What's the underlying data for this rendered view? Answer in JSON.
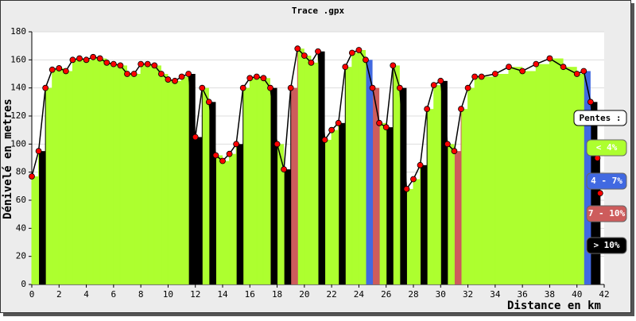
{
  "chart_data": {
    "type": "profile",
    "title": "Trace .gpx",
    "x_label": "Distance en km",
    "y_label": "Dénivelé en metres",
    "x": [
      0,
      0.5,
      1,
      1.5,
      2,
      2.5,
      3,
      3.5,
      4,
      4.5,
      5,
      5.5,
      6,
      6.5,
      7,
      7.5,
      8,
      8.5,
      9,
      9.5,
      10,
      10.5,
      11,
      11.5,
      12,
      12.5,
      13,
      13.5,
      14,
      14.5,
      15,
      15.5,
      16,
      16.5,
      17,
      17.5,
      18,
      18.5,
      19,
      19.5,
      20,
      20.5,
      21,
      21.5,
      22,
      22.5,
      23,
      23.5,
      24,
      24.5,
      25,
      25.5,
      26,
      26.5,
      27,
      27.5,
      28,
      28.5,
      29,
      29.5,
      30,
      30.5,
      31,
      31.5,
      32,
      32.5,
      33,
      34,
      35,
      36,
      37,
      38,
      39,
      40,
      40.5,
      41,
      41.5,
      41.7
    ],
    "values": [
      77,
      95,
      140,
      153,
      154,
      152,
      160,
      161,
      160,
      162,
      161,
      158,
      157,
      156,
      150,
      150,
      157,
      157,
      156,
      150,
      146,
      145,
      148,
      150,
      105,
      140,
      130,
      92,
      88,
      93,
      100,
      140,
      147,
      148,
      147,
      140,
      100,
      82,
      140,
      168,
      163,
      158,
      166,
      103,
      110,
      115,
      155,
      165,
      167,
      160,
      140,
      115,
      112,
      156,
      140,
      68,
      75,
      85,
      125,
      142,
      145,
      100,
      95,
      125,
      140,
      148,
      148,
      150,
      155,
      152,
      157,
      161,
      155,
      150,
      152,
      130,
      90,
      65
    ],
    "bar_colors": [
      "#adff2f",
      "#000000",
      "#adff2f",
      "#adff2f",
      "#adff2f",
      "#adff2f",
      "#adff2f",
      "#adff2f",
      "#adff2f",
      "#adff2f",
      "#adff2f",
      "#adff2f",
      "#adff2f",
      "#adff2f",
      "#adff2f",
      "#adff2f",
      "#adff2f",
      "#adff2f",
      "#adff2f",
      "#adff2f",
      "#adff2f",
      "#adff2f",
      "#adff2f",
      "#000000",
      "#000000",
      "#adff2f",
      "#000000",
      "#adff2f",
      "#adff2f",
      "#adff2f",
      "#000000",
      "#adff2f",
      "#adff2f",
      "#adff2f",
      "#adff2f",
      "#000000",
      "#adff2f",
      "#000000",
      "#cd5c5c",
      "#adff2f",
      "#adff2f",
      "#adff2f",
      "#000000",
      "#adff2f",
      "#adff2f",
      "#000000",
      "#adff2f",
      "#adff2f",
      "#adff2f",
      "#4169e1",
      "#cd5c5c",
      "#adff2f",
      "#000000",
      "#adff2f",
      "#000000",
      "#adff2f",
      "#adff2f",
      "#000000",
      "#adff2f",
      "#adff2f",
      "#000000",
      "#adff2f",
      "#cd5c5c",
      "#adff2f",
      "#adff2f",
      "#adff2f",
      "#adff2f",
      "#adff2f",
      "#adff2f",
      "#adff2f",
      "#adff2f",
      "#adff2f",
      "#adff2f",
      "#adff2f",
      "#4169e1",
      "#000000",
      "#000000",
      "#adff2f"
    ],
    "point_color": "#ff0000",
    "xlim": [
      0,
      42
    ],
    "xticks": [
      0,
      2,
      4,
      6,
      8,
      10,
      12,
      14,
      16,
      18,
      20,
      22,
      24,
      26,
      28,
      30,
      32,
      34,
      36,
      38,
      40,
      42
    ],
    "ylim": [
      0,
      180
    ],
    "yticks": [
      0,
      20,
      40,
      60,
      80,
      100,
      120,
      140,
      160,
      180
    ],
    "grid": true,
    "legend_title": "Pentes :",
    "legend": [
      {
        "label": "< 4%",
        "color": "#adff2f"
      },
      {
        "label": "4 - 7%",
        "color": "#4169e1"
      },
      {
        "label": "7 - 10%",
        "color": "#cd5c5c"
      },
      {
        "label": "> 10%",
        "color": "#000000"
      }
    ]
  }
}
